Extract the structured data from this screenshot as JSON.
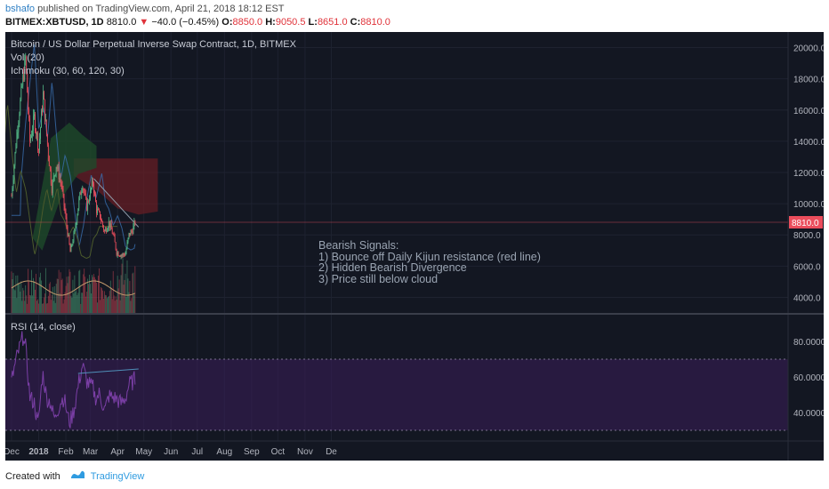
{
  "header": {
    "author": "bshafo",
    "published_text": "published on TradingView.com, April 21, 2018 18:12 EST",
    "symbol": "BITMEX:XBTUSD, 1D",
    "last": "8810.0",
    "change": "−40.0 (−0.45%)",
    "open_label": "O:",
    "open": "8850.0",
    "high_label": "H:",
    "high": "9050.5",
    "low_label": "L:",
    "low": "8651.0",
    "close_label": "C:",
    "close": "8810.0"
  },
  "legend": {
    "title": "Bitcoin / US Dollar Perpetual Inverse Swap Contract, 1D, BITMEX",
    "vol": "Vol (20)",
    "ichimoku": "Ichimoku (30, 60, 120, 30)",
    "rsi": "RSI (14, close)"
  },
  "annotation": {
    "heading": "Bearish Signals:",
    "lines": [
      "1) Bounce off Daily Kijun resistance (red line)",
      "2) Hidden Bearish Divergence",
      "3) Price still below cloud"
    ]
  },
  "footer": {
    "created_with": "Created with",
    "brand": "TradingView"
  },
  "colors": {
    "up": "#53b987",
    "down": "#eb4d5c",
    "bg": "#131722",
    "rsi": "#7b3fa6",
    "cloud_red": "#6b1e24",
    "cloud_green": "#1e4a2a",
    "price_tag": "#eb4d5c"
  },
  "chart_data": [
    {
      "type": "candlestick",
      "name": "price",
      "y_ticks": [
        "20000.0",
        "18000.0",
        "16000.0",
        "14000.0",
        "12000.0",
        "10000.0",
        "8000.0",
        "6000.0",
        "4000.0"
      ],
      "ylim": [
        3000,
        21000
      ],
      "x_ticks": [
        "Dec",
        "2018",
        "Feb",
        "Mar",
        "Apr",
        "May",
        "Jun",
        "Jul",
        "Aug",
        "Sep",
        "Oct",
        "Nov",
        "De"
      ],
      "last_price_label": "8810.0",
      "approx_close_path": [
        [
          "2017-12-01",
          10500
        ],
        [
          "2017-12-07",
          14500
        ],
        [
          "2017-12-13",
          17500
        ],
        [
          "2017-12-17",
          19300
        ],
        [
          "2017-12-22",
          14000
        ],
        [
          "2017-12-27",
          15500
        ],
        [
          "2018-01-01",
          13500
        ],
        [
          "2018-01-06",
          17000
        ],
        [
          "2018-01-11",
          13800
        ],
        [
          "2018-01-16",
          11000
        ],
        [
          "2018-01-21",
          12500
        ],
        [
          "2018-01-27",
          11200
        ],
        [
          "2018-02-01",
          9000
        ],
        [
          "2018-02-06",
          6900
        ],
        [
          "2018-02-11",
          8200
        ],
        [
          "2018-02-16",
          10200
        ],
        [
          "2018-02-20",
          11300
        ],
        [
          "2018-02-25",
          9800
        ],
        [
          "2018-03-04",
          11400
        ],
        [
          "2018-03-08",
          9600
        ],
        [
          "2018-03-12",
          9200
        ],
        [
          "2018-03-17",
          8200
        ],
        [
          "2018-03-22",
          8800
        ],
        [
          "2018-03-27",
          8000
        ],
        [
          "2018-03-31",
          6900
        ],
        [
          "2018-04-06",
          6700
        ],
        [
          "2018-04-10",
          6800
        ],
        [
          "2018-04-14",
          8000
        ],
        [
          "2018-04-18",
          8300
        ],
        [
          "2018-04-21",
          8810
        ]
      ]
    },
    {
      "type": "line",
      "name": "RSI",
      "y_ticks": [
        "80.0000",
        "60.0000",
        "40.0000"
      ],
      "ylim": [
        26,
        95
      ],
      "bands": [
        30,
        70
      ]
    }
  ]
}
